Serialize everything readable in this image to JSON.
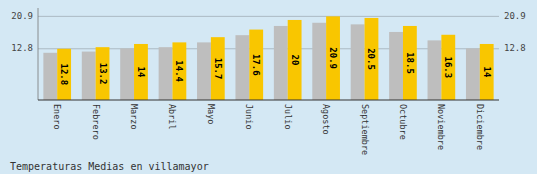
{
  "chart_data": {
    "type": "bar",
    "title": "Temperaturas Medias en villamayor",
    "categories": [
      "Enero",
      "Febrero",
      "Marzo",
      "Abril",
      "Mayo",
      "Junio",
      "Julio",
      "Agosto",
      "Septiembre",
      "Octubre",
      "Noviembre",
      "Diciembre"
    ],
    "series": [
      {
        "color": "#BEBEBE",
        "values": [
          11.8,
          12.1,
          12.9,
          13.2,
          14.4,
          16.2,
          18.5,
          19.3,
          18.9,
          17.0,
          14.9,
          12.9
        ]
      },
      {
        "color": "#F9C600",
        "data_labels": true,
        "values": [
          12.8,
          13.2,
          14.0,
          14.4,
          15.7,
          17.6,
          20.0,
          20.9,
          20.5,
          18.5,
          16.3,
          14.0
        ]
      }
    ],
    "ylim": [
      0,
      22.99
    ],
    "yticks": [
      12.8,
      20.9
    ],
    "grid": true
  }
}
